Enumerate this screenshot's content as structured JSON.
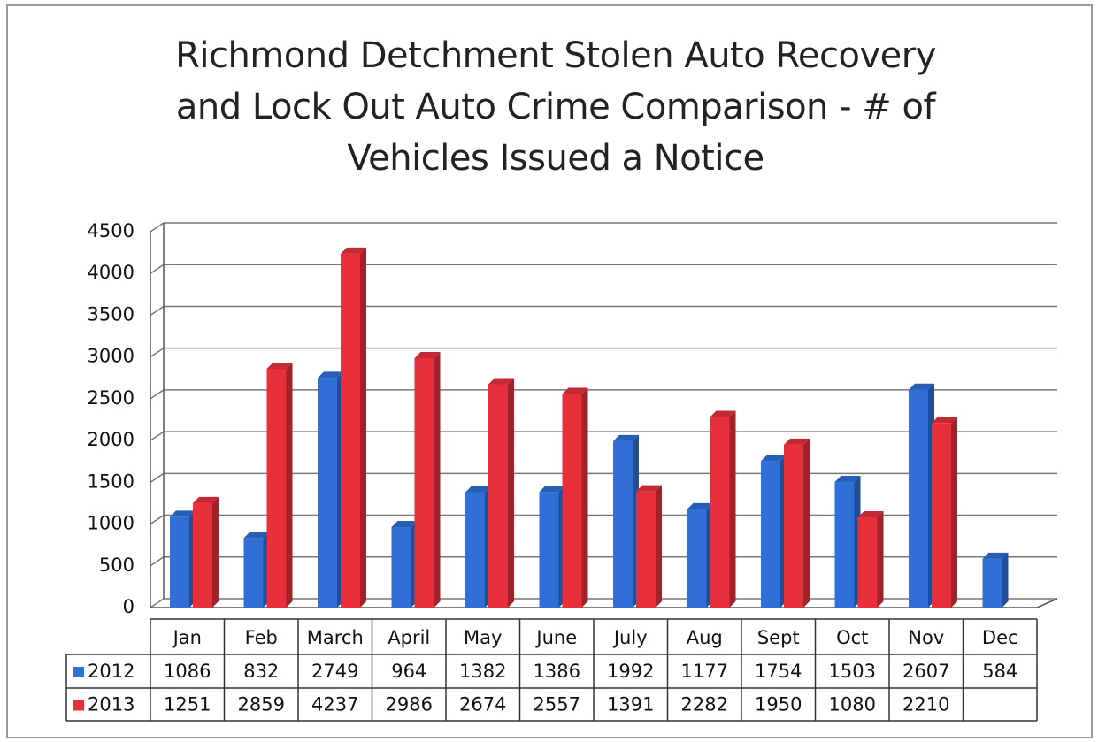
{
  "chart_data": {
    "type": "bar",
    "title": "Richmond Detchment Stolen Auto Recovery and Lock Out Auto Crime Comparison - # of Vehicles Issued a Notice",
    "categories": [
      "Jan",
      "Feb",
      "March",
      "April",
      "May",
      "June",
      "July",
      "Aug",
      "Sept",
      "Oct",
      "Nov",
      "Dec"
    ],
    "series": [
      {
        "name": "2012",
        "color": "#2f6fd6",
        "values": [
          1086,
          832,
          2749,
          964,
          1382,
          1386,
          1992,
          1177,
          1754,
          1503,
          2607,
          584
        ]
      },
      {
        "name": "2013",
        "color": "#e8303c",
        "values": [
          1251,
          2859,
          4237,
          2986,
          2674,
          2557,
          1391,
          2282,
          1950,
          1080,
          2210,
          null
        ]
      }
    ],
    "ylim": [
      0,
      4500
    ],
    "yticks": [
      0,
      500,
      1000,
      1500,
      2000,
      2500,
      3000,
      3500,
      4000,
      4500
    ],
    "grid": true
  }
}
